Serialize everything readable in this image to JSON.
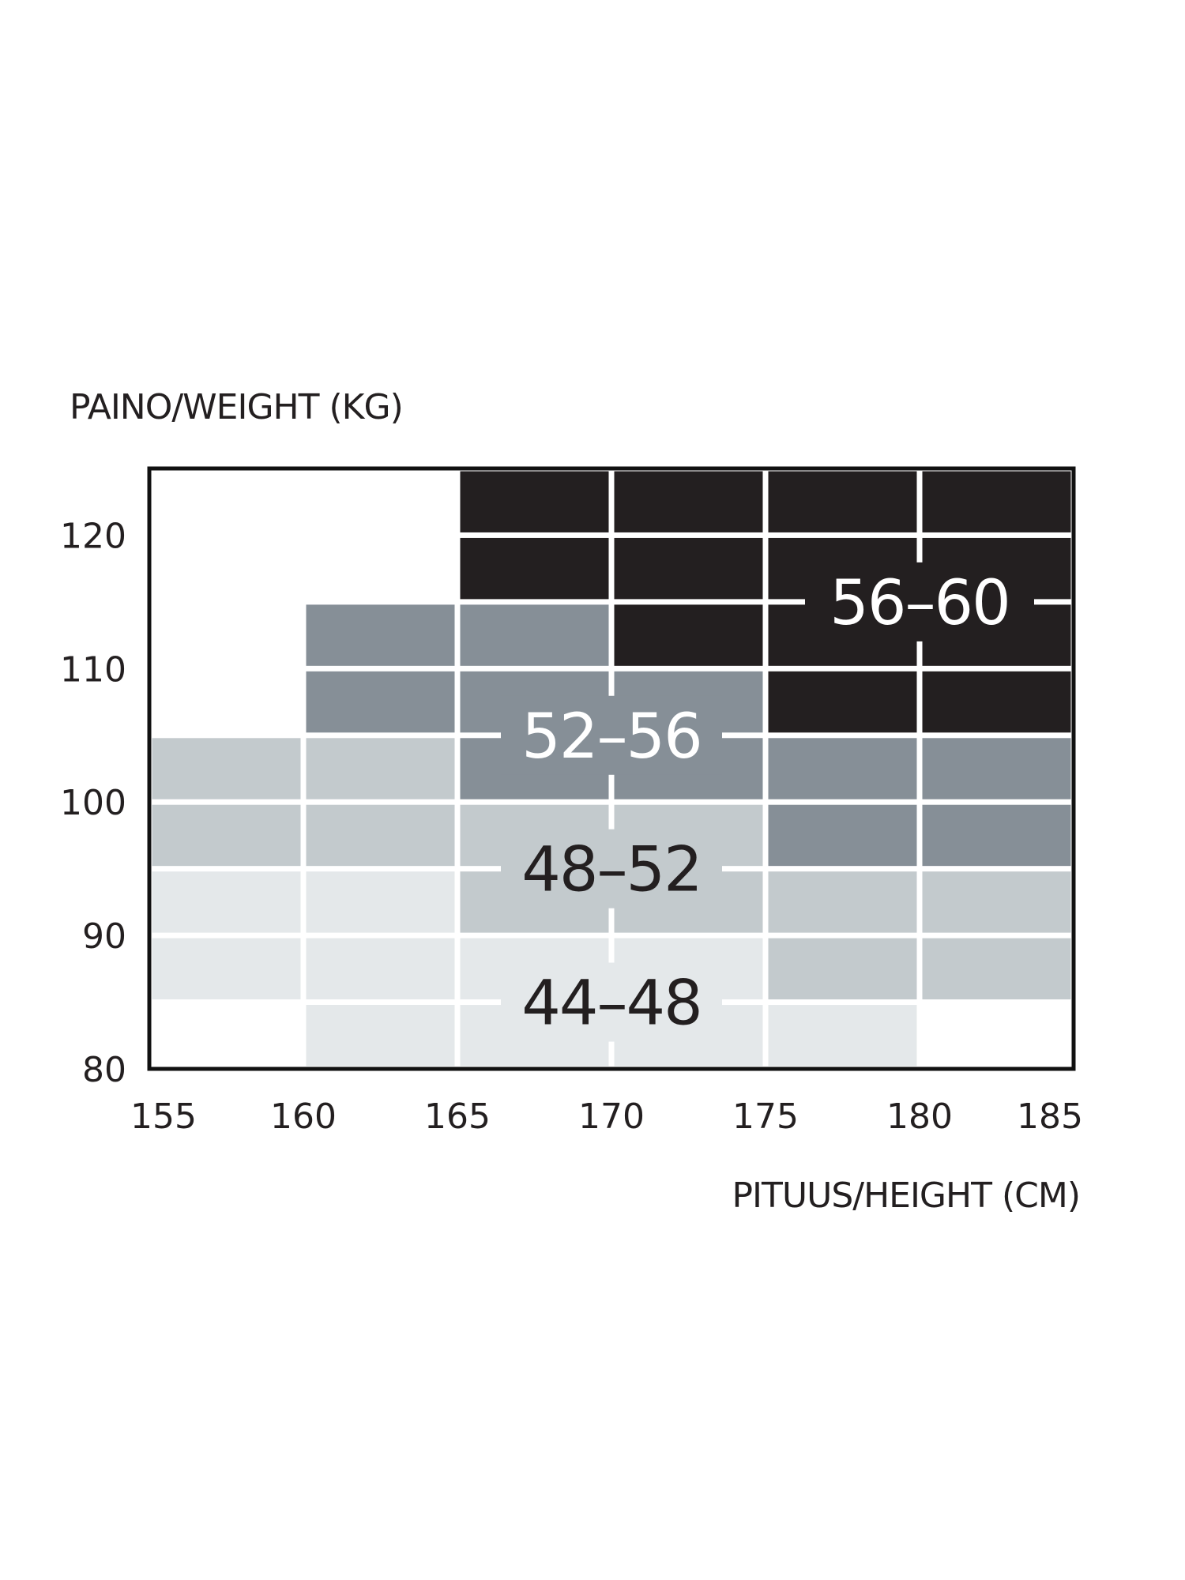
{
  "chart_data": {
    "type": "heatmap",
    "ylabel": "PAINO/WEIGHT (KG)",
    "xlabel": "PITUUS/HEIGHT (CM)",
    "x_ticks": [
      "155",
      "160",
      "165",
      "170",
      "175",
      "180",
      "185"
    ],
    "y_ticks": [
      "120",
      "110",
      "100",
      "90",
      "80"
    ],
    "xlim": [
      155,
      185
    ],
    "ylim": [
      80,
      125
    ],
    "x_edges": [
      155,
      160,
      165,
      170,
      175,
      180,
      185
    ],
    "y_edges": [
      80,
      85,
      90,
      95,
      100,
      105,
      110,
      115,
      120,
      125
    ],
    "sizes": [
      "44–48",
      "48–52",
      "52–56",
      "56–60"
    ],
    "colors": {
      "44–48": "#e4e8ea",
      "48–52": "#c3cacd",
      "52–56": "#868f97",
      "56–60": "#231f20"
    },
    "label_colors": {
      "44–48": "#231f20",
      "48–52": "#231f20",
      "52–56": "#ffffff",
      "56–60": "#ffffff"
    },
    "cells_bottom_to_top": [
      [
        null,
        "44–48",
        "44–48",
        "44–48",
        "44–48",
        null
      ],
      [
        "44–48",
        "44–48",
        "44–48",
        "44–48",
        "48–52",
        "48–52"
      ],
      [
        "44–48",
        "44–48",
        "48–52",
        "48–52",
        "48–52",
        "48–52"
      ],
      [
        "48–52",
        "48–52",
        "48–52",
        "48–52",
        "52–56",
        "52–56"
      ],
      [
        "48–52",
        "48–52",
        "52–56",
        "52–56",
        "52–56",
        "52–56"
      ],
      [
        null,
        "52–56",
        "52–56",
        "52–56",
        "56–60",
        "56–60"
      ],
      [
        null,
        "52–56",
        "52–56",
        "56–60",
        "56–60",
        "56–60"
      ],
      [
        null,
        null,
        "56–60",
        "56–60",
        "56–60",
        "56–60"
      ],
      [
        null,
        null,
        "56–60",
        "56–60",
        "56–60",
        "56–60"
      ]
    ],
    "partial_cells": [
      {
        "x": [
          160,
          165
        ],
        "y": [
          82.5,
          85
        ],
        "size": "44–48"
      }
    ],
    "annotations": [
      {
        "text": "56–60",
        "x": 180,
        "y": 115
      },
      {
        "text": "52–56",
        "x": 170,
        "y": 105
      },
      {
        "text": "48–52",
        "x": 170,
        "y": 95
      },
      {
        "text": "44–48",
        "x": 170,
        "y": 85
      }
    ],
    "grid": true,
    "legend": "none"
  }
}
